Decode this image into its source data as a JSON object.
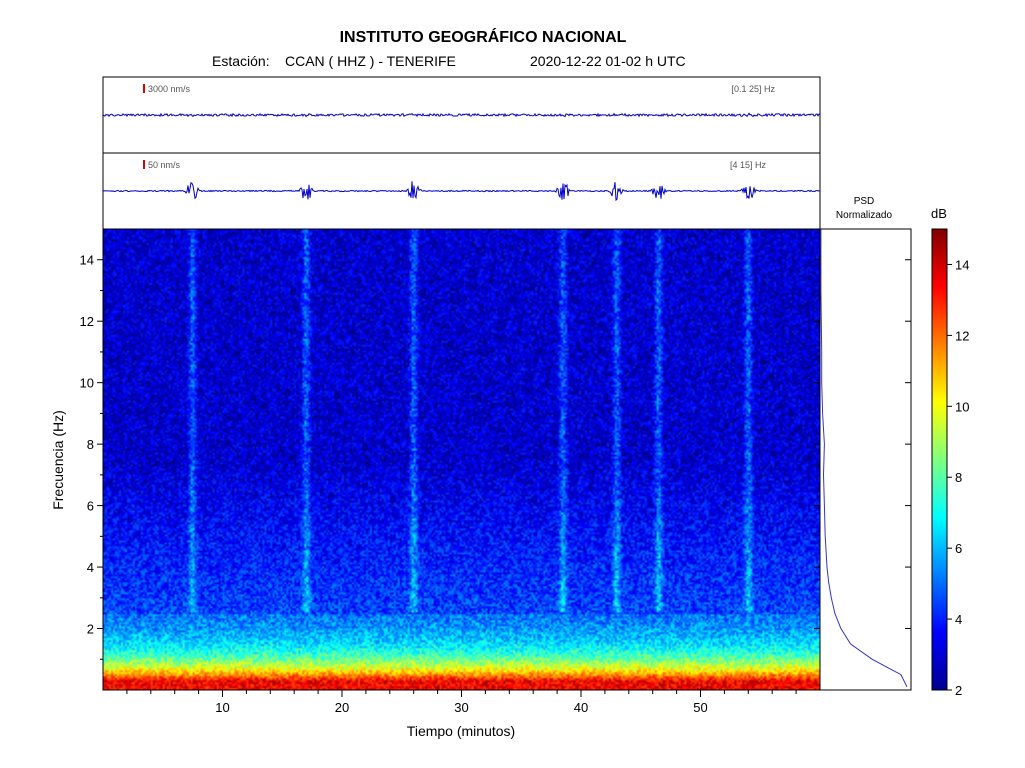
{
  "header": {
    "title": "INSTITUTO GEOGRÁFICO NACIONAL",
    "station_prefix": "Estación:",
    "station": "CCAN ( HHZ ) - TENERIFE",
    "datetime": "2020-12-22  01-02 h UTC"
  },
  "traces": [
    {
      "scale_label": "3000 nm/s",
      "band_label": "[0.1 25] Hz",
      "color": "#0000cc"
    },
    {
      "scale_label": "50 nm/s",
      "band_label": "[4 15] Hz",
      "color": "#0000cc"
    }
  ],
  "psd_panel": {
    "label_line1": "PSD",
    "label_line2": "Normalizado"
  },
  "colorbar": {
    "unit": "dB",
    "range": [
      2,
      15
    ],
    "ticks": [
      2,
      4,
      6,
      8,
      10,
      12,
      14
    ]
  },
  "chart_data": {
    "type": "heatmap",
    "xlabel": "Tiempo (minutos)",
    "ylabel": "Frecuencia (Hz)",
    "xlim": [
      0,
      60
    ],
    "ylim": [
      0,
      15
    ],
    "xticks": [
      10,
      20,
      30,
      40,
      50
    ],
    "yticks": [
      2,
      4,
      6,
      8,
      10,
      12,
      14
    ],
    "events_minutes": [
      7.5,
      17.0,
      26.0,
      38.5,
      43.0,
      46.5,
      54.0
    ],
    "background_db": {
      "low_freq_peak": 13.5,
      "mid_freq": 4.5,
      "high_freq": 3.0
    },
    "psd_normalized": {
      "freq_hz": [
        0.1,
        0.5,
        1.0,
        1.5,
        2.0,
        2.5,
        3.0,
        3.5,
        4.0,
        5.0,
        6.0,
        7.0,
        8.0,
        9.0,
        10.0,
        11.0,
        12.0,
        13.0,
        14.0,
        15.0
      ],
      "value": [
        1.0,
        0.93,
        0.6,
        0.35,
        0.24,
        0.17,
        0.13,
        0.1,
        0.08,
        0.06,
        0.05,
        0.04,
        0.05,
        0.03,
        0.02,
        0.02,
        0.015,
        0.01,
        0.01,
        0.01
      ]
    }
  }
}
